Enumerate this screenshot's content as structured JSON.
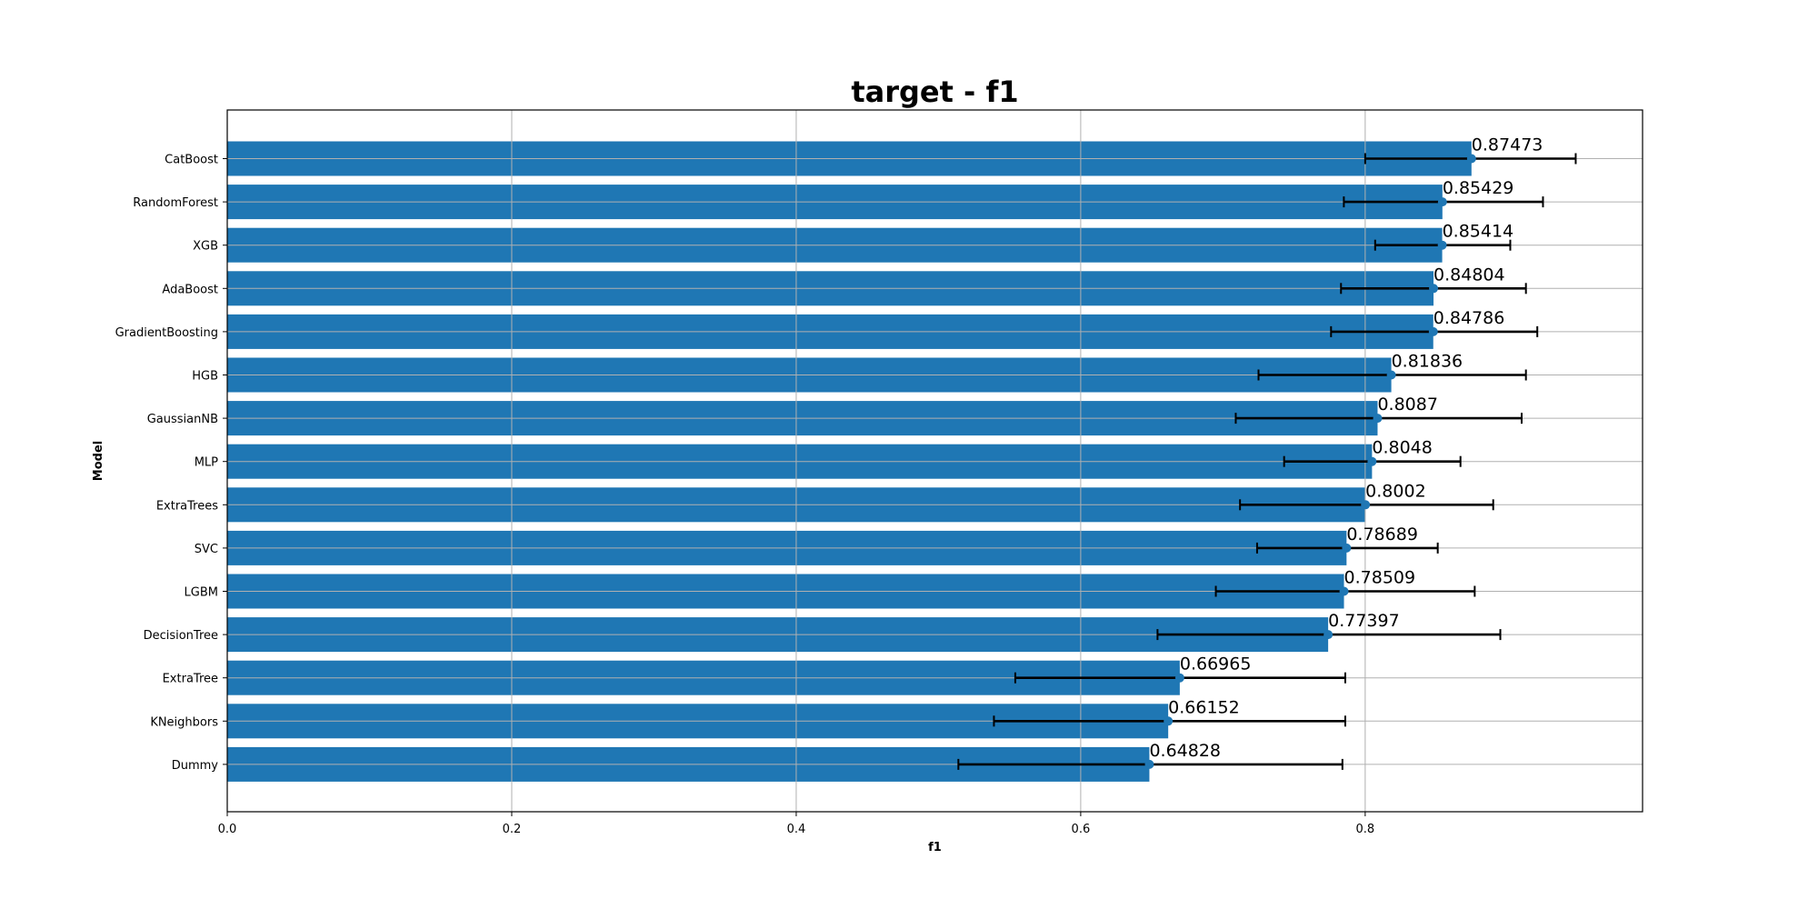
{
  "chart_data": {
    "type": "bar",
    "orientation": "horizontal",
    "title": "target - f1",
    "xlabel": "f1",
    "ylabel": "Model",
    "xlim": [
      0,
      0.995
    ],
    "xticks": [
      0.0,
      0.2,
      0.4,
      0.6,
      0.8
    ],
    "xtick_labels": [
      "0.0",
      "0.2",
      "0.4",
      "0.6",
      "0.8"
    ],
    "grid": true,
    "bar_color": "#1f77b4",
    "errorbar_color": "#000000",
    "categories": [
      "CatBoost",
      "RandomForest",
      "XGB",
      "AdaBoost",
      "GradientBoosting",
      "HGB",
      "GaussianNB",
      "MLP",
      "ExtraTrees",
      "SVC",
      "LGBM",
      "DecisionTree",
      "ExtraTree",
      "KNeighbors",
      "Dummy"
    ],
    "values": [
      0.87473,
      0.85429,
      0.85414,
      0.84804,
      0.84786,
      0.81836,
      0.8087,
      0.8048,
      0.8002,
      0.78689,
      0.78509,
      0.77397,
      0.66965,
      0.66152,
      0.64828
    ],
    "value_labels": [
      "0.87473",
      "0.85429",
      "0.85414",
      "0.84804",
      "0.84786",
      "0.81836",
      "0.8087",
      "0.8048",
      "0.8002",
      "0.78689",
      "0.78509",
      "0.77397",
      "0.66965",
      "0.66152",
      "0.64828"
    ],
    "error_low": [
      0.8,
      0.785,
      0.807,
      0.783,
      0.776,
      0.725,
      0.709,
      0.743,
      0.712,
      0.724,
      0.695,
      0.654,
      0.554,
      0.539,
      0.514
    ],
    "error_high": [
      0.948,
      0.925,
      0.902,
      0.913,
      0.921,
      0.913,
      0.91,
      0.867,
      0.89,
      0.851,
      0.877,
      0.895,
      0.786,
      0.786,
      0.784
    ]
  }
}
